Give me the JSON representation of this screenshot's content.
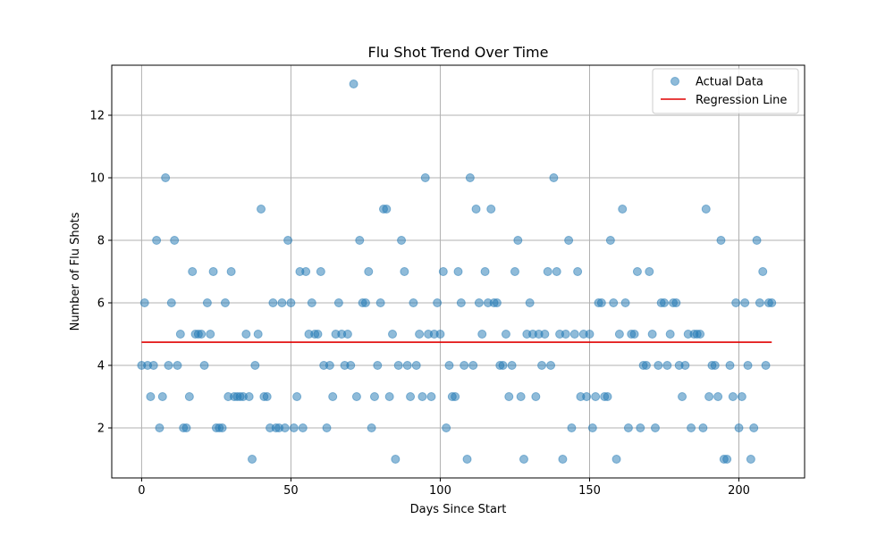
{
  "chart_data": {
    "type": "scatter",
    "title": "Flu Shot Trend Over Time",
    "xlabel": "Days Since Start",
    "ylabel": "Number of Flu Shots",
    "xlim": [
      -10,
      222
    ],
    "ylim": [
      0.4,
      13.6
    ],
    "xticks": [
      0,
      50,
      100,
      150,
      200
    ],
    "yticks": [
      2,
      4,
      6,
      8,
      10,
      12
    ],
    "grid": true,
    "legend_position": "top-right",
    "colors": {
      "points": "#1f77b4",
      "regression": "#e00000"
    },
    "series": [
      {
        "name": "Actual Data",
        "kind": "scatter",
        "x": [
          0,
          1,
          2,
          3,
          4,
          5,
          6,
          7,
          8,
          9,
          10,
          11,
          12,
          13,
          14,
          15,
          16,
          17,
          18,
          19,
          20,
          21,
          22,
          23,
          24,
          25,
          26,
          27,
          28,
          29,
          30,
          31,
          32,
          33,
          34,
          35,
          36,
          37,
          38,
          39,
          40,
          41,
          42,
          43,
          44,
          45,
          46,
          47,
          48,
          49,
          50,
          51,
          52,
          53,
          54,
          55,
          56,
          57,
          58,
          59,
          60,
          61,
          62,
          63,
          64,
          65,
          66,
          67,
          68,
          69,
          70,
          71,
          72,
          73,
          74,
          75,
          76,
          77,
          78,
          79,
          80,
          81,
          82,
          83,
          84,
          85,
          86,
          87,
          88,
          89,
          90,
          91,
          92,
          93,
          94,
          95,
          96,
          97,
          98,
          99,
          100,
          101,
          102,
          103,
          104,
          105,
          106,
          107,
          108,
          109,
          110,
          111,
          112,
          113,
          114,
          115,
          116,
          117,
          118,
          119,
          120,
          121,
          122,
          123,
          124,
          125,
          126,
          127,
          128,
          129,
          130,
          131,
          132,
          133,
          134,
          135,
          136,
          137,
          138,
          139,
          140,
          141,
          142,
          143,
          144,
          145,
          146,
          147,
          148,
          149,
          150,
          151,
          152,
          153,
          154,
          155,
          156,
          157,
          158,
          159,
          160,
          161,
          162,
          163,
          164,
          165,
          166,
          167,
          168,
          169,
          170,
          171,
          172,
          173,
          174,
          175,
          176,
          177,
          178,
          179,
          180,
          181,
          182,
          183,
          184,
          185,
          186,
          187,
          188,
          189,
          190,
          191,
          192,
          193,
          194,
          195,
          196,
          197,
          198,
          199,
          200,
          201,
          202,
          203,
          204,
          205,
          206,
          207,
          208,
          209,
          210,
          211
        ],
        "y": [
          4,
          6,
          4,
          3,
          4,
          8,
          2,
          3,
          10,
          4,
          6,
          8,
          4,
          5,
          2,
          2,
          3,
          7,
          5,
          5,
          5,
          4,
          6,
          5,
          7,
          2,
          2,
          2,
          6,
          3,
          7,
          3,
          3,
          3,
          3,
          5,
          3,
          1,
          4,
          5,
          9,
          3,
          3,
          2,
          6,
          2,
          2,
          6,
          2,
          8,
          6,
          2,
          3,
          7,
          2,
          7,
          5,
          6,
          5,
          5,
          7,
          4,
          2,
          4,
          3,
          5,
          6,
          5,
          4,
          5,
          4,
          13,
          3,
          8,
          6,
          6,
          7,
          2,
          3,
          4,
          6,
          9,
          9,
          3,
          5,
          1,
          4,
          8,
          7,
          4,
          3,
          6,
          4,
          5,
          3,
          10,
          5,
          3,
          5,
          6,
          5,
          7,
          2,
          4,
          3,
          3,
          7,
          6,
          4,
          1,
          10,
          4,
          9,
          6,
          5,
          7,
          6,
          9,
          6,
          6,
          4,
          4,
          5,
          3,
          4,
          7,
          8,
          3,
          1,
          5,
          6,
          5,
          3,
          5,
          4,
          5,
          7,
          4,
          10,
          7,
          5,
          1,
          5,
          8,
          2,
          5,
          7,
          3,
          5,
          3,
          5,
          2,
          3,
          6,
          6,
          3,
          3,
          8,
          6,
          1,
          5,
          9,
          6,
          2,
          5,
          5,
          7,
          2,
          4,
          4,
          7,
          5,
          2,
          4,
          6,
          6,
          4,
          5,
          6,
          6,
          4,
          3,
          4,
          5,
          2,
          5,
          5,
          5,
          2,
          9,
          3,
          4,
          4,
          3,
          8,
          1,
          1,
          4,
          3,
          6,
          2,
          3,
          6,
          4,
          1,
          2,
          8,
          6,
          7,
          4,
          6,
          6
        ]
      },
      {
        "name": "Regression Line",
        "kind": "line",
        "x": [
          0,
          211
        ],
        "y": [
          4.74,
          4.74
        ]
      }
    ]
  }
}
